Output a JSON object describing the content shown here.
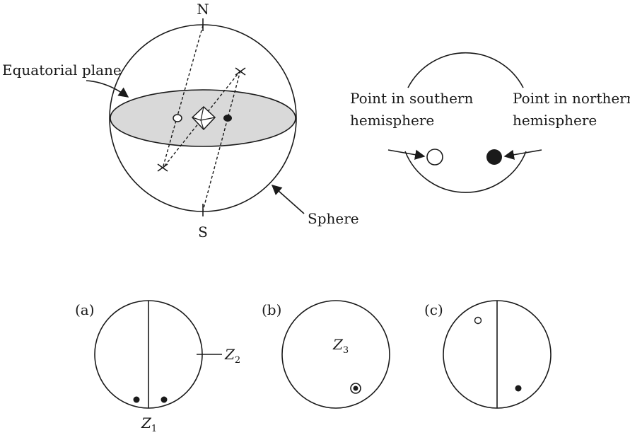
{
  "sphere_figure": {
    "north_label": "N",
    "south_label": "S",
    "equatorial_plane_label": "Equatorial plane",
    "sphere_label": "Sphere",
    "plane_fill": "#d9d9d9"
  },
  "projection_legend": {
    "southern_label_line1": "Point in southern",
    "southern_label_line2": "hemisphere",
    "northern_label_line1": "Point in northern",
    "northern_label_line2": "hemisphere"
  },
  "panels": {
    "a": {
      "label": "(a)",
      "z1_main": "Z",
      "z1_sub": "1",
      "z2_main": "Z",
      "z2_sub": "2"
    },
    "b": {
      "label": "(b)",
      "z3_main": "Z",
      "z3_sub": "3"
    },
    "c": {
      "label": "(c)"
    }
  }
}
